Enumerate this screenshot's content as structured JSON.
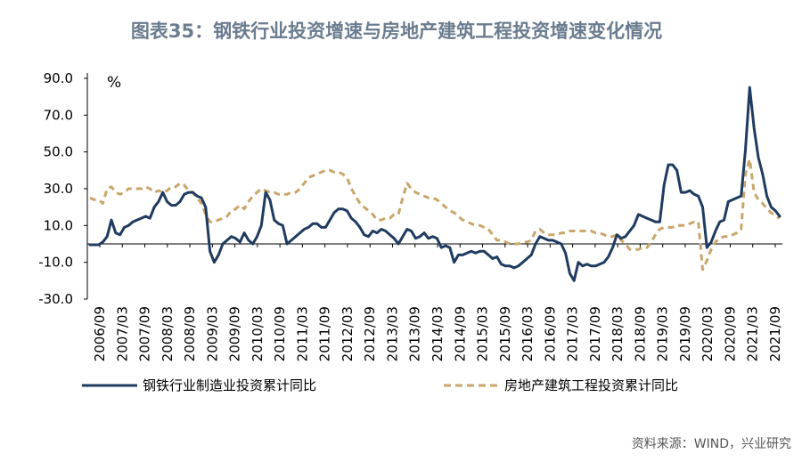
{
  "chart_data": {
    "type": "line",
    "title": "图表35：钢铁行业投资增速与房地产建筑工程投资增速变化情况",
    "ylabel": "%",
    "ylim": [
      -30,
      90
    ],
    "yticks": [
      "90.0",
      "70.0",
      "50.0",
      "30.0",
      "10.0",
      "-10.0",
      "-30.0"
    ],
    "xticks": [
      "2006/09",
      "2007/03",
      "2007/09",
      "2008/03",
      "2008/09",
      "2009/03",
      "2009/09",
      "2010/03",
      "2010/09",
      "2011/03",
      "2011/09",
      "2012/03",
      "2012/09",
      "2013/03",
      "2013/09",
      "2014/03",
      "2014/09",
      "2015/03",
      "2015/09",
      "2016/03",
      "2016/09",
      "2017/03",
      "2017/09",
      "2018/03",
      "2018/09",
      "2019/03",
      "2019/09",
      "2020/03",
      "2020/09",
      "2021/03",
      "2021/09"
    ],
    "source": "资料来源：WIND，兴业研究",
    "colors": {
      "steel": "#1f3b60",
      "property": "#c9a66b"
    },
    "series": [
      {
        "name": "钢铁行业制造业投资累计同比",
        "style": "solid",
        "points": [
          [
            0,
            -0.5
          ],
          [
            1,
            -0.5
          ],
          [
            2,
            -0.5
          ],
          [
            3,
            1
          ],
          [
            4,
            4
          ],
          [
            5,
            13
          ],
          [
            6,
            6
          ],
          [
            7,
            5
          ],
          [
            8,
            9
          ],
          [
            9,
            10
          ],
          [
            10,
            12
          ],
          [
            11,
            13
          ],
          [
            12,
            14
          ],
          [
            13,
            15
          ],
          [
            14,
            14
          ],
          [
            15,
            20
          ],
          [
            16,
            23
          ],
          [
            17,
            28
          ],
          [
            18,
            23
          ],
          [
            19,
            21
          ],
          [
            20,
            21
          ],
          [
            21,
            23
          ],
          [
            22,
            27
          ],
          [
            23,
            28
          ],
          [
            24,
            28
          ],
          [
            25,
            26
          ],
          [
            26,
            25
          ],
          [
            27,
            20
          ],
          [
            28,
            -4
          ],
          [
            29,
            -10
          ],
          [
            30,
            -6
          ],
          [
            31,
            0
          ],
          [
            32,
            2
          ],
          [
            33,
            4
          ],
          [
            34,
            3
          ],
          [
            35,
            1
          ],
          [
            36,
            6
          ],
          [
            37,
            2
          ],
          [
            38,
            0
          ],
          [
            39,
            4
          ],
          [
            40,
            10
          ],
          [
            41,
            28
          ],
          [
            42,
            24
          ],
          [
            43,
            13
          ],
          [
            44,
            11
          ],
          [
            45,
            10
          ],
          [
            46,
            0
          ],
          [
            47,
            2
          ],
          [
            48,
            4
          ],
          [
            49,
            6
          ],
          [
            50,
            8
          ],
          [
            51,
            9
          ],
          [
            52,
            11
          ],
          [
            53,
            11
          ],
          [
            54,
            9
          ],
          [
            55,
            9
          ],
          [
            56,
            13
          ],
          [
            57,
            17
          ],
          [
            58,
            19
          ],
          [
            59,
            19
          ],
          [
            60,
            18
          ],
          [
            61,
            14
          ],
          [
            62,
            12
          ],
          [
            63,
            9
          ],
          [
            64,
            5
          ],
          [
            65,
            4
          ],
          [
            66,
            7
          ],
          [
            67,
            6
          ],
          [
            68,
            8
          ],
          [
            69,
            7
          ],
          [
            70,
            5
          ],
          [
            71,
            3
          ],
          [
            72,
            0
          ],
          [
            73,
            4
          ],
          [
            74,
            8
          ],
          [
            75,
            7
          ],
          [
            76,
            3
          ],
          [
            77,
            4
          ],
          [
            78,
            6
          ],
          [
            79,
            3
          ],
          [
            80,
            4
          ],
          [
            81,
            3
          ],
          [
            82,
            -2
          ],
          [
            83,
            -1
          ],
          [
            84,
            -2
          ],
          [
            85,
            -10
          ],
          [
            86,
            -6
          ],
          [
            87,
            -6
          ],
          [
            88,
            -5
          ],
          [
            89,
            -4
          ],
          [
            90,
            -5
          ],
          [
            91,
            -4
          ],
          [
            92,
            -4
          ],
          [
            93,
            -6
          ],
          [
            94,
            -8
          ],
          [
            95,
            -7
          ],
          [
            96,
            -11
          ],
          [
            97,
            -12
          ],
          [
            98,
            -12
          ],
          [
            99,
            -13
          ],
          [
            100,
            -12
          ],
          [
            101,
            -10
          ],
          [
            102,
            -8
          ],
          [
            103,
            -6
          ],
          [
            104,
            0
          ],
          [
            105,
            4
          ],
          [
            106,
            3
          ],
          [
            107,
            2
          ],
          [
            108,
            2
          ],
          [
            109,
            1
          ],
          [
            110,
            0
          ],
          [
            111,
            -5
          ],
          [
            112,
            -16
          ],
          [
            113,
            -20
          ],
          [
            114,
            -10
          ],
          [
            115,
            -12
          ],
          [
            116,
            -11
          ],
          [
            117,
            -12
          ],
          [
            118,
            -12
          ],
          [
            119,
            -11
          ],
          [
            120,
            -10
          ],
          [
            121,
            -7
          ],
          [
            122,
            -2
          ],
          [
            123,
            5
          ],
          [
            124,
            3
          ],
          [
            125,
            4
          ],
          [
            126,
            7
          ],
          [
            127,
            10
          ],
          [
            128,
            16
          ],
          [
            129,
            15
          ],
          [
            130,
            14
          ],
          [
            131,
            13
          ],
          [
            132,
            12
          ],
          [
            133,
            12
          ],
          [
            134,
            32
          ],
          [
            135,
            43
          ],
          [
            136,
            43
          ],
          [
            137,
            40
          ],
          [
            138,
            28
          ],
          [
            139,
            28
          ],
          [
            140,
            29
          ],
          [
            141,
            27
          ],
          [
            142,
            26
          ],
          [
            143,
            20
          ],
          [
            144,
            -2
          ],
          [
            145,
            1
          ],
          [
            146,
            7
          ],
          [
            147,
            12
          ],
          [
            148,
            13
          ],
          [
            149,
            23
          ],
          [
            150,
            24
          ],
          [
            151,
            25
          ],
          [
            152,
            26
          ],
          [
            153,
            51
          ],
          [
            154,
            85
          ],
          [
            155,
            63
          ],
          [
            156,
            47
          ],
          [
            157,
            38
          ],
          [
            158,
            26
          ],
          [
            159,
            20
          ],
          [
            160,
            18
          ],
          [
            161,
            15
          ]
        ]
      },
      {
        "name": "房地产建筑工程投资累计同比",
        "style": "dashed",
        "points": [
          [
            0,
            25
          ],
          [
            1,
            24
          ],
          [
            2,
            24
          ],
          [
            3,
            22
          ],
          [
            4,
            30
          ],
          [
            5,
            31
          ],
          [
            6,
            28
          ],
          [
            7,
            27
          ],
          [
            8,
            28
          ],
          [
            9,
            30
          ],
          [
            10,
            30
          ],
          [
            11,
            30
          ],
          [
            12,
            30
          ],
          [
            13,
            31
          ],
          [
            14,
            30
          ],
          [
            15,
            28
          ],
          [
            16,
            29
          ],
          [
            17,
            28
          ],
          [
            18,
            29
          ],
          [
            19,
            31
          ],
          [
            20,
            31
          ],
          [
            21,
            33
          ],
          [
            22,
            32
          ],
          [
            23,
            29
          ],
          [
            24,
            28
          ],
          [
            25,
            25
          ],
          [
            26,
            22
          ],
          [
            27,
            16
          ],
          [
            28,
            12
          ],
          [
            29,
            12
          ],
          [
            30,
            13
          ],
          [
            31,
            14
          ],
          [
            32,
            15
          ],
          [
            33,
            18
          ],
          [
            34,
            19
          ],
          [
            35,
            21
          ],
          [
            36,
            19
          ],
          [
            37,
            23
          ],
          [
            38,
            26
          ],
          [
            39,
            28
          ],
          [
            40,
            30
          ],
          [
            41,
            29
          ],
          [
            42,
            28
          ],
          [
            43,
            28
          ],
          [
            44,
            27
          ],
          [
            45,
            27
          ],
          [
            46,
            27
          ],
          [
            47,
            28
          ],
          [
            48,
            28
          ],
          [
            49,
            30
          ],
          [
            50,
            33
          ],
          [
            51,
            36
          ],
          [
            52,
            37
          ],
          [
            53,
            38
          ],
          [
            54,
            39
          ],
          [
            55,
            40
          ],
          [
            56,
            40
          ],
          [
            57,
            39
          ],
          [
            58,
            39
          ],
          [
            59,
            38
          ],
          [
            60,
            36
          ],
          [
            61,
            30
          ],
          [
            62,
            26
          ],
          [
            63,
            22
          ],
          [
            64,
            20
          ],
          [
            65,
            18
          ],
          [
            66,
            16
          ],
          [
            67,
            13
          ],
          [
            68,
            13
          ],
          [
            69,
            14
          ],
          [
            70,
            14
          ],
          [
            71,
            16
          ],
          [
            72,
            16
          ],
          [
            73,
            25
          ],
          [
            74,
            33
          ],
          [
            75,
            30
          ],
          [
            76,
            28
          ],
          [
            77,
            27
          ],
          [
            78,
            26
          ],
          [
            79,
            25
          ],
          [
            80,
            25
          ],
          [
            81,
            24
          ],
          [
            82,
            22
          ],
          [
            83,
            20
          ],
          [
            84,
            18
          ],
          [
            85,
            17
          ],
          [
            86,
            15
          ],
          [
            87,
            13
          ],
          [
            88,
            12
          ],
          [
            89,
            11
          ],
          [
            90,
            10
          ],
          [
            91,
            10
          ],
          [
            92,
            9
          ],
          [
            93,
            8
          ],
          [
            94,
            5
          ],
          [
            95,
            2
          ],
          [
            96,
            2
          ],
          [
            97,
            1
          ],
          [
            98,
            0
          ],
          [
            99,
            0
          ],
          [
            100,
            0
          ],
          [
            101,
            1
          ],
          [
            102,
            1
          ],
          [
            103,
            2
          ],
          [
            104,
            7
          ],
          [
            105,
            8
          ],
          [
            106,
            6
          ],
          [
            107,
            5
          ],
          [
            108,
            5
          ],
          [
            109,
            5
          ],
          [
            110,
            6
          ],
          [
            111,
            6
          ],
          [
            112,
            7
          ],
          [
            113,
            7
          ],
          [
            114,
            7
          ],
          [
            115,
            7
          ],
          [
            116,
            7
          ],
          [
            117,
            7
          ],
          [
            118,
            6
          ],
          [
            119,
            6
          ],
          [
            120,
            5
          ],
          [
            121,
            4
          ],
          [
            122,
            4
          ],
          [
            123,
            5
          ],
          [
            124,
            2
          ],
          [
            125,
            0
          ],
          [
            126,
            -3
          ],
          [
            127,
            -3
          ],
          [
            128,
            -3
          ],
          [
            129,
            -2
          ],
          [
            130,
            -2
          ],
          [
            131,
            1
          ],
          [
            132,
            5
          ],
          [
            133,
            8
          ],
          [
            134,
            9
          ],
          [
            135,
            9
          ],
          [
            136,
            9
          ],
          [
            137,
            10
          ],
          [
            138,
            10
          ],
          [
            139,
            10
          ],
          [
            140,
            11
          ],
          [
            141,
            12
          ],
          [
            142,
            12
          ],
          [
            143,
            -14
          ],
          [
            144,
            -9
          ],
          [
            145,
            -3
          ],
          [
            146,
            1
          ],
          [
            147,
            3
          ],
          [
            148,
            4
          ],
          [
            149,
            4
          ],
          [
            150,
            5
          ],
          [
            151,
            6
          ],
          [
            152,
            8
          ],
          [
            153,
            38
          ],
          [
            154,
            46
          ],
          [
            155,
            28
          ],
          [
            156,
            24
          ],
          [
            157,
            22
          ],
          [
            158,
            19
          ],
          [
            159,
            17
          ],
          [
            160,
            15
          ],
          [
            161,
            14
          ]
        ]
      }
    ]
  }
}
